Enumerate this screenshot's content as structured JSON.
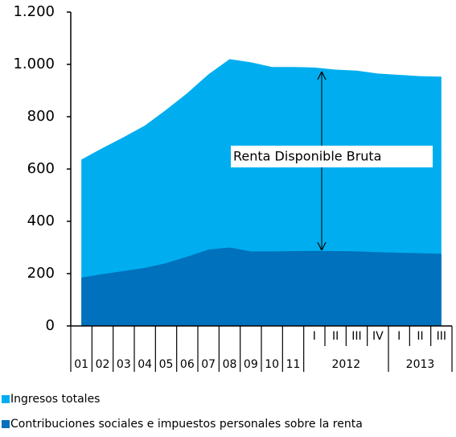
{
  "chart_data": {
    "type": "area",
    "categories": [
      "01",
      "02",
      "03",
      "04",
      "05",
      "06",
      "07",
      "08",
      "09",
      "10",
      "11",
      "I",
      "II",
      "III",
      "IV",
      "I",
      "II",
      "III"
    ],
    "groups": [
      {
        "label": "2012",
        "count": 4
      },
      {
        "label": "2013",
        "count": 3
      }
    ],
    "series": [
      {
        "name": "Ingresos totales",
        "color": "#00aeef",
        "values": [
          636,
          680,
          722,
          766,
          826,
          890,
          962,
          1020,
          1008,
          990,
          990,
          988,
          980,
          976,
          965,
          960,
          955,
          953
        ]
      },
      {
        "name": "Contribuciones sociales e impuestos personales sobre la renta",
        "color": "#0071bc",
        "values": [
          185,
          198,
          210,
          222,
          240,
          265,
          292,
          300,
          285,
          285,
          286,
          287,
          286,
          285,
          282,
          280,
          278,
          276
        ]
      }
    ],
    "annotation": "Renta Disponible Bruta",
    "ylim": [
      0,
      1200
    ],
    "yticks": [
      0,
      200,
      400,
      600,
      800,
      {
        "value": 1000,
        "label": "1.000"
      },
      {
        "value": 1200,
        "label": "1.200"
      }
    ],
    "grid": false,
    "legend": "bottom"
  }
}
